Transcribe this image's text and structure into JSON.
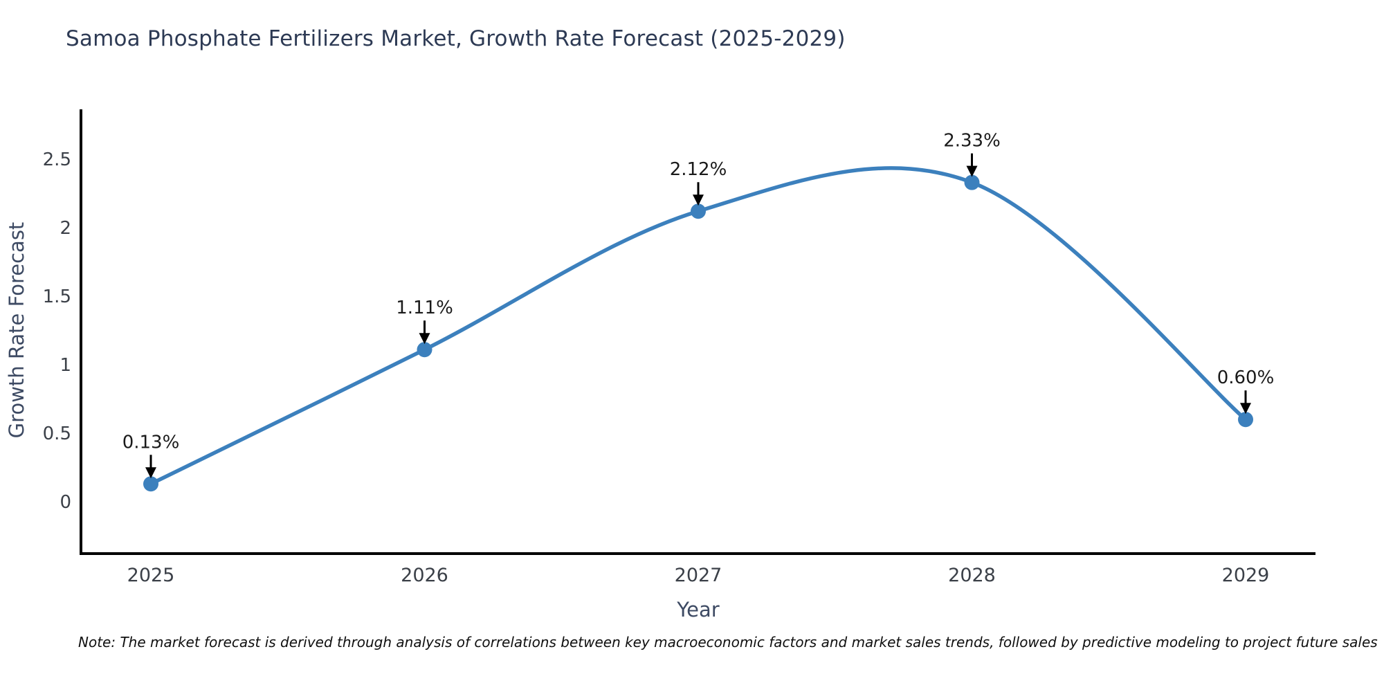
{
  "chart_data": {
    "type": "line",
    "curve": "spline",
    "title": "Samoa Phosphate Fertilizers Market, Growth Rate Forecast (2025-2029)",
    "xlabel": "Year",
    "ylabel": "Growth Rate Forecast",
    "categories": [
      "2025",
      "2026",
      "2027",
      "2028",
      "2029"
    ],
    "values": [
      0.13,
      1.11,
      2.12,
      2.33,
      0.6
    ],
    "point_labels": [
      "0.13%",
      "1.11%",
      "2.12%",
      "2.33%",
      "0.60%"
    ],
    "ytick_values": [
      0,
      0.5,
      1,
      1.5,
      2,
      2.5
    ],
    "ytick_labels": [
      "0",
      "0.5",
      "1",
      "1.5",
      "2",
      "2.5"
    ],
    "ylim": [
      -0.39,
      2.86
    ],
    "grid": false,
    "legend": "none",
    "markers": true,
    "annotations_arrows": true,
    "colors": {
      "line": "#3c80bd",
      "marker": "#3c80bd",
      "annotation_text": "#1a1a1a",
      "arrow": "#000000",
      "axis": "#000000",
      "tick_text": "#3b4048",
      "axis_label_text": "#3d4a63",
      "title_text": "#2d3a54",
      "footnote_text": "#0f0f0f"
    }
  },
  "footnote": {
    "text": "Note: The market forecast is derived through analysis of correlations between key macroeconomic factors and market sales trends, followed by predictive modeling to project future sales"
  }
}
